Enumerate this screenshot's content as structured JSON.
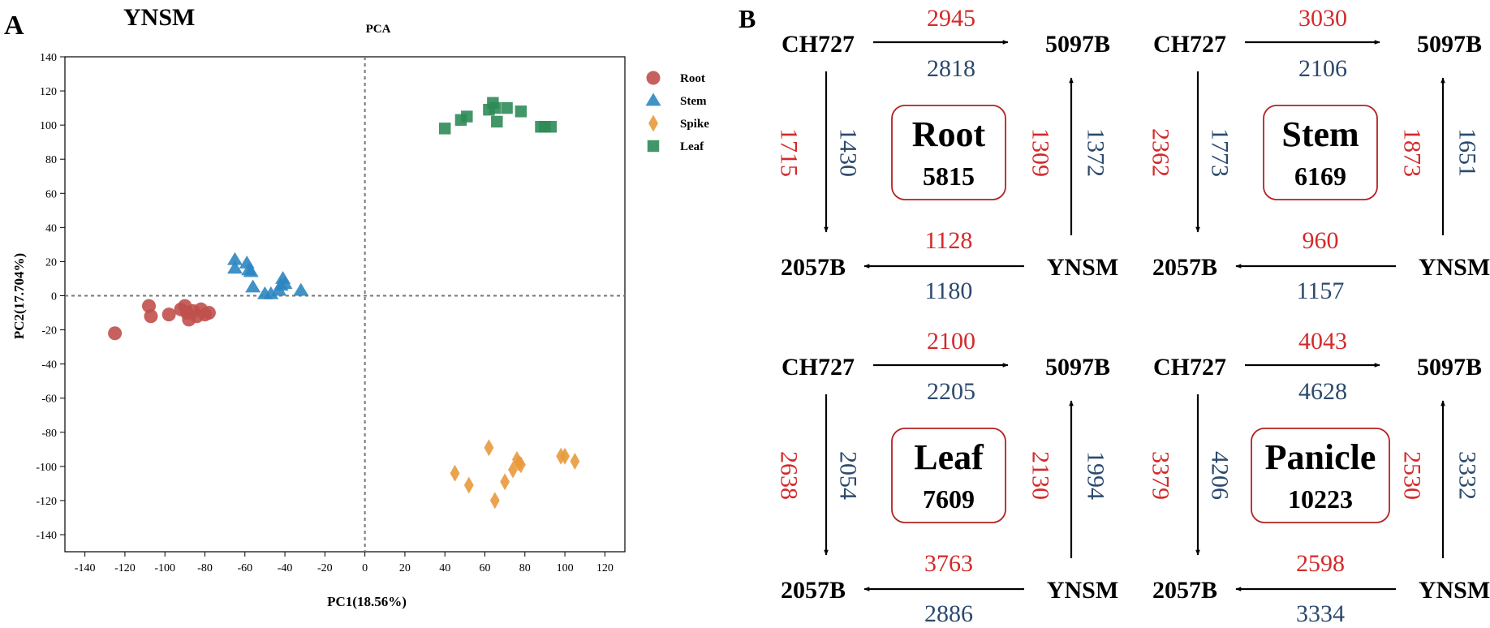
{
  "panel_a": {
    "panel_letter": "A",
    "sample_title": "YNSM",
    "chart_data": {
      "type": "scatter",
      "title": "PCA",
      "xlabel": "PC1(18.56%)",
      "ylabel": "PC2(17.704%)",
      "xlim": [
        -150,
        130
      ],
      "ylim": [
        -150,
        140
      ],
      "xticks": [
        -140,
        -120,
        -100,
        -80,
        -60,
        -40,
        -20,
        0,
        20,
        40,
        60,
        80,
        100,
        120
      ],
      "yticks": [
        140,
        120,
        100,
        80,
        60,
        40,
        20,
        0,
        -20,
        -40,
        -60,
        -80,
        -100,
        -120,
        -140
      ],
      "reference_lines": {
        "x": 0,
        "y": 0
      },
      "legend_position": "top-right",
      "series": [
        {
          "name": "Root",
          "marker": "circle",
          "color": "#C0504D",
          "points": [
            [
              -125,
              -22
            ],
            [
              -108,
              -6
            ],
            [
              -107,
              -12
            ],
            [
              -98,
              -11
            ],
            [
              -92,
              -8
            ],
            [
              -90,
              -6
            ],
            [
              -89,
              -10
            ],
            [
              -88,
              -14
            ],
            [
              -86,
              -9
            ],
            [
              -84,
              -12
            ],
            [
              -82,
              -8
            ],
            [
              -80,
              -11
            ],
            [
              -78,
              -10
            ]
          ]
        },
        {
          "name": "Stem",
          "marker": "triangle",
          "color": "#2E86C1",
          "points": [
            [
              -65,
              21
            ],
            [
              -65,
              16
            ],
            [
              -59,
              19
            ],
            [
              -58,
              15
            ],
            [
              -57,
              14
            ],
            [
              -56,
              5
            ],
            [
              -50,
              1
            ],
            [
              -47,
              1
            ],
            [
              -43,
              3
            ],
            [
              -42,
              6
            ],
            [
              -41,
              10
            ],
            [
              -40,
              7
            ],
            [
              -32,
              3
            ]
          ]
        },
        {
          "name": "Spike",
          "marker": "diamond",
          "color": "#E89A3C",
          "points": [
            [
              45,
              -104
            ],
            [
              52,
              -111
            ],
            [
              62,
              -89
            ],
            [
              65,
              -120
            ],
            [
              70,
              -109
            ],
            [
              74,
              -102
            ],
            [
              76,
              -96
            ],
            [
              77,
              -98
            ],
            [
              78,
              -99
            ],
            [
              98,
              -94
            ],
            [
              100,
              -94
            ],
            [
              105,
              -97
            ]
          ]
        },
        {
          "name": "Leaf",
          "marker": "square",
          "color": "#2E8B57",
          "points": [
            [
              40,
              98
            ],
            [
              48,
              103
            ],
            [
              51,
              105
            ],
            [
              62,
              109
            ],
            [
              64,
              113
            ],
            [
              65,
              110
            ],
            [
              66,
              102
            ],
            [
              71,
              110
            ],
            [
              78,
              108
            ],
            [
              88,
              99
            ],
            [
              90,
              99
            ],
            [
              93,
              99
            ]
          ]
        }
      ]
    }
  },
  "panel_b": {
    "panel_letter": "B",
    "colors": {
      "red": "#D42A2A",
      "blue": "#2C4A6E",
      "box": "#B22222",
      "black": "#000000"
    },
    "diagrams": [
      {
        "tissue": "Root",
        "total": "5815",
        "nodes": {
          "top_left": "CH727",
          "top_right": "5097B",
          "bottom_left": "2057B",
          "bottom_right": "YNSM"
        },
        "top": {
          "red": "2945",
          "blue": "2818"
        },
        "left": {
          "red": "1715",
          "blue": "1430"
        },
        "right": {
          "red": "1309",
          "blue": "1372"
        },
        "bottom": {
          "red": "1128",
          "blue": "1180"
        }
      },
      {
        "tissue": "Stem",
        "total": "6169",
        "nodes": {
          "top_left": "CH727",
          "top_right": "5097B",
          "bottom_left": "2057B",
          "bottom_right": "YNSM"
        },
        "top": {
          "red": "3030",
          "blue": "2106"
        },
        "left": {
          "red": "2362",
          "blue": "1773"
        },
        "right": {
          "red": "1873",
          "blue": "1651"
        },
        "bottom": {
          "red": "960",
          "blue": "1157"
        }
      },
      {
        "tissue": "Leaf",
        "total": "7609",
        "nodes": {
          "top_left": "CH727",
          "top_right": "5097B",
          "bottom_left": "2057B",
          "bottom_right": "YNSM"
        },
        "top": {
          "red": "2100",
          "blue": "2205"
        },
        "left": {
          "red": "2638",
          "blue": "2054"
        },
        "right": {
          "red": "2130",
          "blue": "1994"
        },
        "bottom": {
          "red": "3763",
          "blue": "2886"
        }
      },
      {
        "tissue": "Panicle",
        "total": "10223",
        "nodes": {
          "top_left": "CH727",
          "top_right": "5097B",
          "bottom_left": "2057B",
          "bottom_right": "YNSM"
        },
        "top": {
          "red": "4043",
          "blue": "4628"
        },
        "left": {
          "red": "3379",
          "blue": "4206"
        },
        "right": {
          "red": "2530",
          "blue": "3332"
        },
        "bottom": {
          "red": "2598",
          "blue": "3334"
        }
      }
    ]
  }
}
